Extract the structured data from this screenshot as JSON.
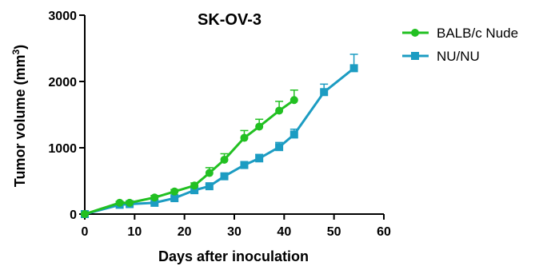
{
  "chart_data": {
    "type": "line",
    "title": "SK-OV-3",
    "xlabel": "Days after inoculation",
    "ylabel": "Tumor volume (mm",
    "ylabel_sup": "3",
    "ylabel_end": ")",
    "xlim": [
      0,
      60
    ],
    "ylim": [
      0,
      3000
    ],
    "xticks": [
      0,
      10,
      20,
      30,
      40,
      50,
      60
    ],
    "yticks": [
      0,
      1000,
      2000,
      3000
    ],
    "grid": false,
    "legend_position": "right",
    "series": [
      {
        "name": "BALB/c Nude",
        "color": "#22c022",
        "marker": "circle",
        "x": [
          0,
          7,
          9,
          14,
          18,
          22,
          25,
          28,
          32,
          35,
          39,
          42
        ],
        "y": [
          0,
          170,
          170,
          250,
          340,
          430,
          620,
          820,
          1150,
          1320,
          1560,
          1720
        ],
        "err": [
          0,
          20,
          20,
          30,
          30,
          40,
          80,
          90,
          110,
          110,
          140,
          150
        ]
      },
      {
        "name": "NU/NU",
        "color": "#1c9cc2",
        "marker": "square",
        "x": [
          0,
          7,
          9,
          14,
          18,
          22,
          25,
          28,
          32,
          35,
          39,
          42,
          48,
          54
        ],
        "y": [
          0,
          140,
          150,
          170,
          240,
          360,
          420,
          570,
          740,
          840,
          1010,
          1200,
          1840,
          2200
        ],
        "err": [
          0,
          15,
          15,
          20,
          25,
          30,
          30,
          40,
          50,
          60,
          70,
          80,
          120,
          210
        ]
      }
    ]
  }
}
